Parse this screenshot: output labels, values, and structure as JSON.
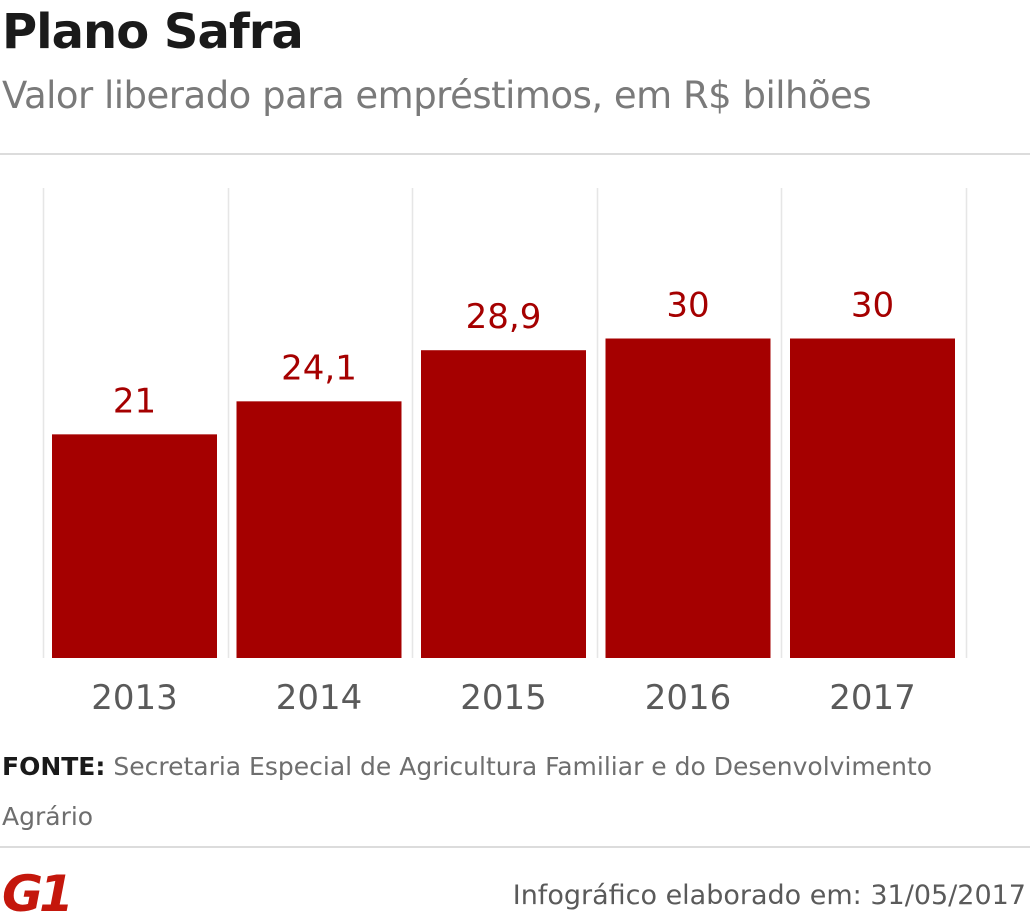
{
  "header": {
    "title": "Plano Safra",
    "subtitle": "Valor liberado para empréstimos, em R$ bilhões"
  },
  "chart_data": {
    "type": "bar",
    "categories": [
      "2013",
      "2014",
      "2015",
      "2016",
      "2017"
    ],
    "values": [
      21,
      24.1,
      28.9,
      30,
      30
    ],
    "value_labels": [
      "21",
      "24,1",
      "28,9",
      "30",
      "30"
    ],
    "ylim": [
      0,
      35
    ],
    "bar_color": "#a50000",
    "label_color": "#a50000",
    "grid": "vertical"
  },
  "footer": {
    "source_label": "FONTE:",
    "source_text": "Secretaria Especial de Agricultura Familiar e do Desenvolvimento Agrário",
    "logo": "G1",
    "credit": "Infográfico elaborado em: 31/05/2017"
  },
  "colors": {
    "brand": "#c4170c",
    "bar": "#a50000"
  }
}
